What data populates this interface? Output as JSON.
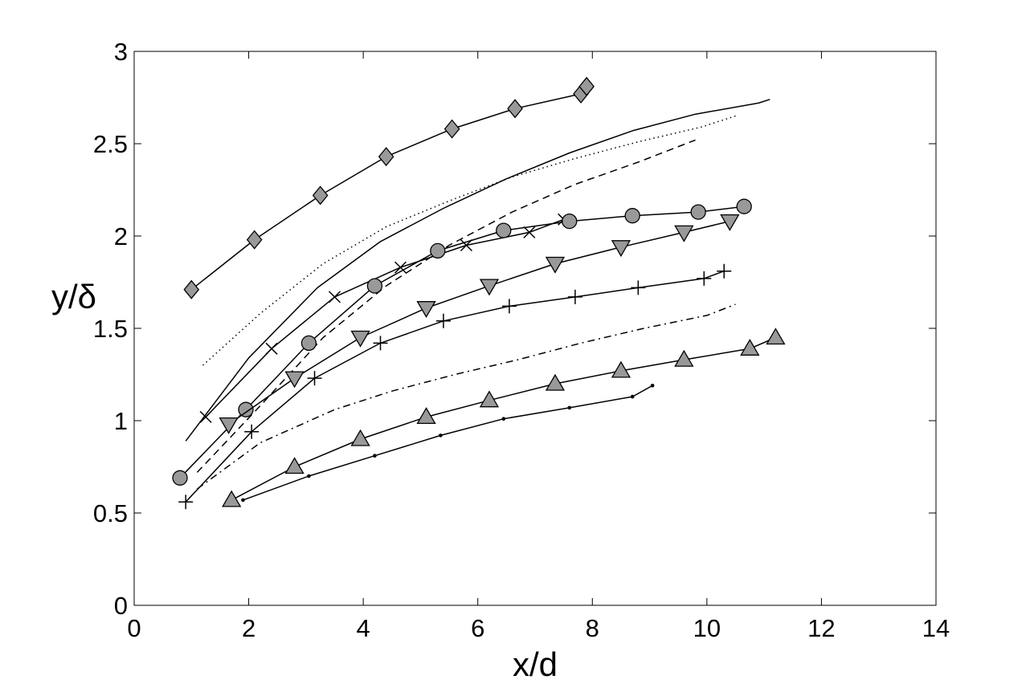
{
  "chart_data": {
    "type": "line",
    "title": "",
    "xlabel": "x/d",
    "ylabel": "y/δ",
    "xlim": [
      0,
      14
    ],
    "ylim": [
      0,
      3
    ],
    "xticks": [
      0,
      2,
      4,
      6,
      8,
      10,
      12,
      14
    ],
    "yticks": [
      0,
      0.5,
      1,
      1.5,
      2,
      2.5,
      3
    ],
    "xtick_labels": [
      "0",
      "2",
      "4",
      "6",
      "8",
      "10",
      "12",
      "14"
    ],
    "ytick_labels": [
      "0",
      "0.5",
      "1",
      "1.5",
      "2",
      "2.5",
      "3"
    ],
    "grid": false,
    "colors": {
      "marker_fill": "#999999",
      "line": "#000000",
      "background": "#ffffff"
    },
    "series": [
      {
        "marker": "diamond",
        "line_style": "solid",
        "x": [
          1.0,
          2.1,
          3.25,
          4.4,
          5.55,
          6.65,
          7.8,
          7.9
        ],
        "y": [
          1.71,
          1.98,
          2.22,
          2.43,
          2.58,
          2.69,
          2.77,
          2.81
        ]
      },
      {
        "marker": "none",
        "line_style": "solid",
        "x": [
          0.9,
          2.0,
          3.2,
          4.3,
          5.4,
          6.5,
          7.6,
          8.7,
          9.8,
          10.9,
          11.1
        ],
        "y": [
          0.89,
          1.34,
          1.72,
          1.97,
          2.15,
          2.31,
          2.45,
          2.57,
          2.66,
          2.72,
          2.74
        ]
      },
      {
        "marker": "none",
        "line_style": "dotted",
        "x": [
          1.2,
          2.2,
          3.3,
          4.4,
          5.5,
          6.6,
          7.7,
          8.8,
          9.9,
          10.5
        ],
        "y": [
          1.3,
          1.58,
          1.85,
          2.05,
          2.19,
          2.32,
          2.42,
          2.51,
          2.59,
          2.65
        ]
      },
      {
        "marker": "none",
        "line_style": "dashed",
        "x": [
          1.1,
          2.2,
          3.3,
          4.4,
          5.5,
          6.6,
          7.7,
          8.8,
          9.8
        ],
        "y": [
          0.72,
          1.08,
          1.45,
          1.73,
          1.95,
          2.13,
          2.28,
          2.4,
          2.52
        ]
      },
      {
        "marker": "x",
        "line_style": "solid",
        "x": [
          1.25,
          2.4,
          3.5,
          4.65,
          5.8,
          6.9,
          7.5
        ],
        "y": [
          1.02,
          1.39,
          1.67,
          1.83,
          1.95,
          2.02,
          2.09
        ]
      },
      {
        "marker": "circle",
        "line_style": "solid",
        "x": [
          0.8,
          1.95,
          3.05,
          4.2,
          5.3,
          6.45,
          7.6,
          8.7,
          9.85,
          10.65
        ],
        "y": [
          0.69,
          1.06,
          1.42,
          1.73,
          1.92,
          2.03,
          2.08,
          2.11,
          2.13,
          2.16
        ]
      },
      {
        "marker": "triangle-down",
        "line_style": "solid",
        "x": [
          1.65,
          2.8,
          3.95,
          5.1,
          6.2,
          7.35,
          8.5,
          9.6,
          10.4
        ],
        "y": [
          0.98,
          1.23,
          1.45,
          1.61,
          1.73,
          1.85,
          1.94,
          2.02,
          2.08
        ]
      },
      {
        "marker": "plus",
        "line_style": "solid",
        "x": [
          0.9,
          2.05,
          3.15,
          4.3,
          5.4,
          6.55,
          7.7,
          8.8,
          9.95,
          10.3
        ],
        "y": [
          0.56,
          0.94,
          1.23,
          1.42,
          1.54,
          1.62,
          1.67,
          1.72,
          1.77,
          1.81
        ]
      },
      {
        "marker": "none",
        "line_style": "dashdot",
        "x": [
          1.1,
          2.2,
          3.5,
          4.5,
          5.6,
          6.7,
          7.8,
          8.9,
          10.0,
          10.5
        ],
        "y": [
          0.63,
          0.88,
          1.06,
          1.16,
          1.25,
          1.33,
          1.42,
          1.5,
          1.57,
          1.63
        ]
      },
      {
        "marker": "triangle-up",
        "line_style": "solid",
        "x": [
          1.7,
          2.8,
          3.95,
          5.1,
          6.2,
          7.35,
          8.5,
          9.6,
          10.75,
          11.2
        ],
        "y": [
          0.57,
          0.75,
          0.9,
          1.02,
          1.11,
          1.2,
          1.27,
          1.33,
          1.39,
          1.45
        ]
      },
      {
        "marker": "dot",
        "line_style": "solid",
        "x": [
          1.9,
          3.05,
          4.2,
          5.35,
          6.45,
          7.6,
          8.7,
          9.05
        ],
        "y": [
          0.57,
          0.7,
          0.81,
          0.92,
          1.01,
          1.07,
          1.13,
          1.19
        ]
      }
    ]
  }
}
